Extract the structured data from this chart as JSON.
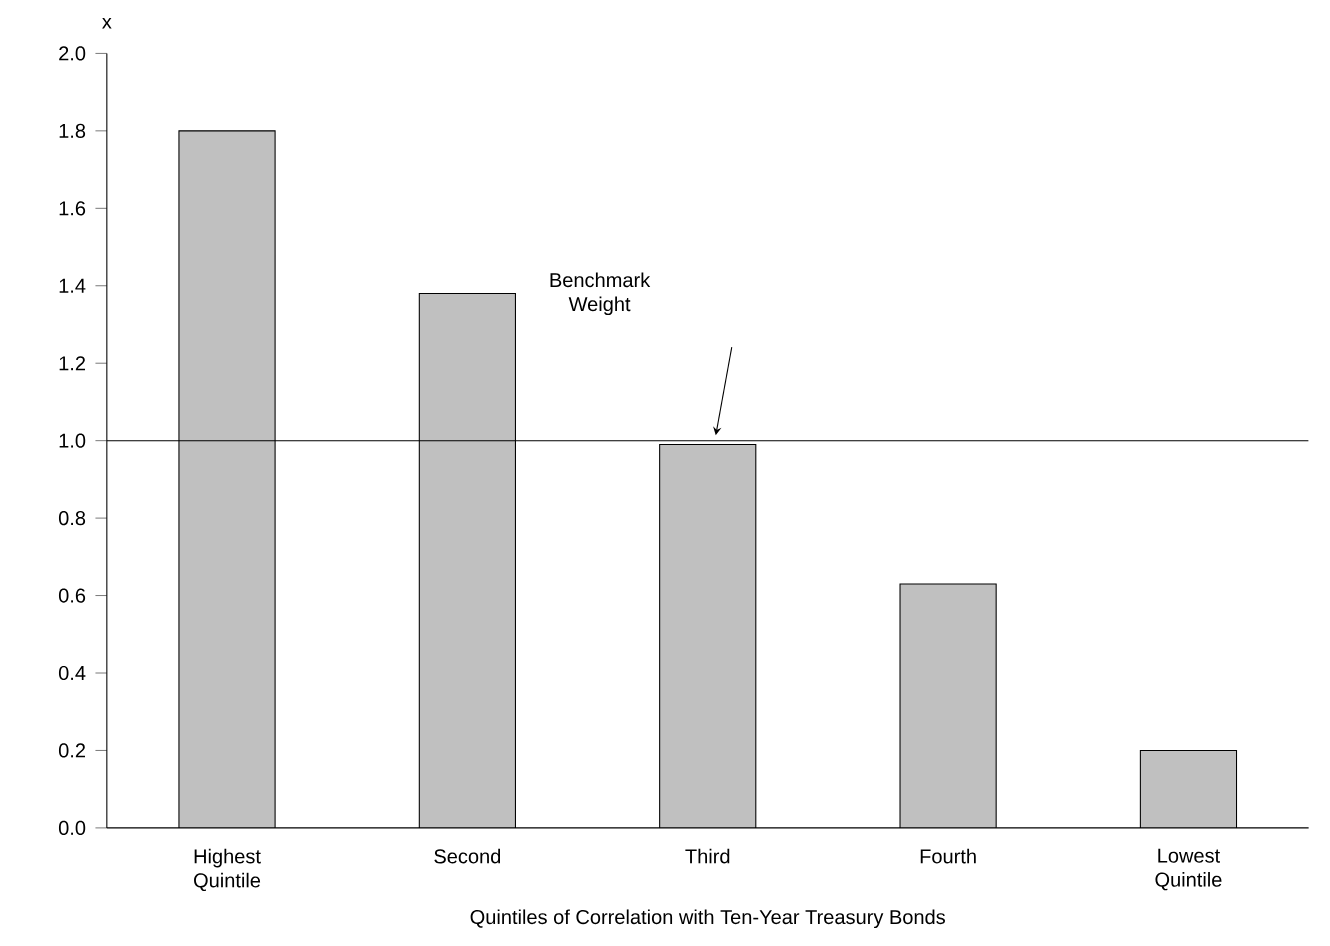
{
  "chart_data": {
    "type": "bar",
    "categories": [
      "Highest Quintile",
      "Second",
      "Third",
      "Fourth",
      "Lowest Quintile"
    ],
    "values": [
      1.8,
      1.38,
      0.99,
      0.63,
      0.2
    ],
    "color": "#c0c0c0",
    "xlabel": "Quintiles of Correlation with Ten-Year Treasury Bonds",
    "ylabel": "x",
    "ylim": [
      0,
      2.0
    ],
    "yticks": [
      {
        "value": 0,
        "label": "0.0"
      },
      {
        "value": 0.2,
        "label": "0.2"
      },
      {
        "value": 0.4,
        "label": "0.4"
      },
      {
        "value": 0.6,
        "label": "0.6"
      },
      {
        "value": 0.8,
        "label": "0.8"
      },
      {
        "value": 1.0,
        "label": "1.0"
      },
      {
        "value": 1.2,
        "label": "1.2"
      },
      {
        "value": 1.4,
        "label": "1.4"
      },
      {
        "value": 1.6,
        "label": "1.6"
      },
      {
        "value": 1.8,
        "label": "1.8"
      },
      {
        "value": 2.0,
        "label": "2.0"
      }
    ],
    "ref_lines": [
      {
        "axis": "y",
        "value": 1.0,
        "label": "Benchmark Weight"
      }
    ],
    "grid": false
  }
}
